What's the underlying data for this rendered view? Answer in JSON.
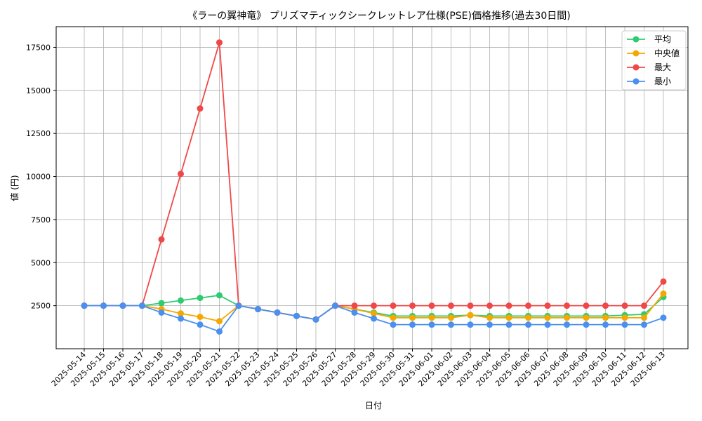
{
  "chart_data": {
    "type": "line",
    "title": "《ラーの翼神竜》 プリズマティックシークレットレア仕様(PSE)価格推移(過去30日間)",
    "xlabel": "日付",
    "ylabel": "値 (円)",
    "ylim": [
      0,
      18700
    ],
    "yticks": [
      2500,
      5000,
      7500,
      10000,
      12500,
      15000,
      17500
    ],
    "grid": true,
    "legend_position": "top-right",
    "categories": [
      "2025-05-14",
      "2025-05-15",
      "2025-05-16",
      "2025-05-17",
      "2025-05-18",
      "2025-05-19",
      "2025-05-20",
      "2025-05-21",
      "2025-05-22",
      "2025-05-23",
      "2025-05-24",
      "2025-05-25",
      "2025-05-26",
      "2025-05-27",
      "2025-05-28",
      "2025-05-29",
      "2025-05-30",
      "2025-05-31",
      "2025-06-01",
      "2025-06-02",
      "2025-06-03",
      "2025-06-04",
      "2025-06-05",
      "2025-06-06",
      "2025-06-07",
      "2025-06-08",
      "2025-06-09",
      "2025-06-10",
      "2025-06-11",
      "2025-06-12",
      "2025-06-13"
    ],
    "series": [
      {
        "name": "平均",
        "color": "#2ecc71",
        "values": [
          2500,
          2500,
          2500,
          2500,
          2650,
          2800,
          2950,
          3100,
          2500,
          2300,
          2100,
          1900,
          1700,
          2500,
          2300,
          2100,
          1900,
          1900,
          1900,
          1900,
          1950,
          1900,
          1900,
          1900,
          1900,
          1900,
          1900,
          1900,
          1950,
          2000,
          3000
        ]
      },
      {
        "name": "中央値",
        "color": "#f5a800",
        "values": [
          2500,
          2500,
          2500,
          2500,
          2300,
          2050,
          1850,
          1600,
          2500,
          2300,
          2100,
          1900,
          1700,
          2500,
          2300,
          2050,
          1800,
          1800,
          1800,
          1800,
          1950,
          1800,
          1800,
          1800,
          1800,
          1800,
          1800,
          1800,
          1800,
          1800,
          3200
        ]
      },
      {
        "name": "最大",
        "color": "#f04848",
        "values": [
          2500,
          2500,
          2500,
          2500,
          6350,
          10150,
          13950,
          17780,
          2500,
          2300,
          2100,
          1900,
          1700,
          2500,
          2500,
          2500,
          2500,
          2500,
          2500,
          2500,
          2500,
          2500,
          2500,
          2500,
          2500,
          2500,
          2500,
          2500,
          2500,
          2500,
          3900
        ]
      },
      {
        "name": "最小",
        "color": "#4a90f0",
        "values": [
          2500,
          2500,
          2500,
          2500,
          2100,
          1750,
          1400,
          1000,
          2500,
          2300,
          2100,
          1900,
          1700,
          2500,
          2100,
          1750,
          1400,
          1400,
          1400,
          1400,
          1400,
          1400,
          1400,
          1400,
          1400,
          1400,
          1400,
          1400,
          1400,
          1400,
          1800
        ]
      }
    ]
  }
}
